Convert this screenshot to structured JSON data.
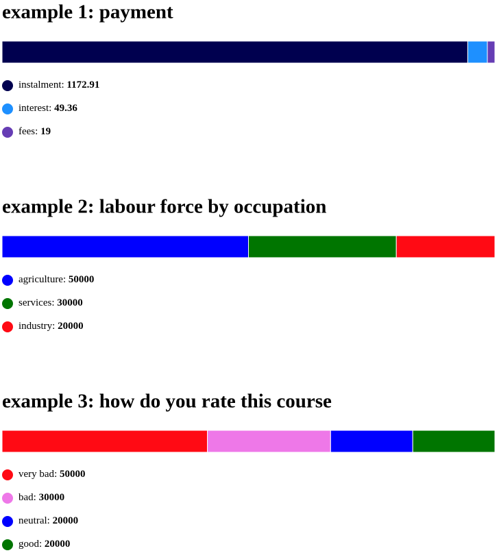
{
  "chart_data": [
    {
      "type": "stacked-bar",
      "title": "example 1: payment",
      "series": [
        {
          "name": "instalment",
          "color": "#00004f",
          "values": [
            1172.91
          ]
        },
        {
          "name": "interest",
          "color": "#1e90ff",
          "values": [
            49.36
          ]
        },
        {
          "name": "fees",
          "color": "#663db4",
          "values": [
            19
          ]
        }
      ]
    },
    {
      "type": "stacked-bar",
      "title": "example 2: labour force by occupation",
      "series": [
        {
          "name": "agriculture",
          "color": "#0000ff",
          "values": [
            50000
          ]
        },
        {
          "name": "services",
          "color": "#007500",
          "values": [
            30000
          ]
        },
        {
          "name": "industry",
          "color": "#ff0a14",
          "values": [
            20000
          ]
        }
      ]
    },
    {
      "type": "stacked-bar",
      "title": "example 3: how do you rate this course",
      "series": [
        {
          "name": "very bad",
          "color": "#ff0a14",
          "values": [
            50000
          ]
        },
        {
          "name": "bad",
          "color": "#ee78e8",
          "values": [
            30000
          ]
        },
        {
          "name": "neutral",
          "color": "#0000ff",
          "values": [
            20000
          ]
        },
        {
          "name": "good",
          "color": "#007500",
          "values": [
            20000
          ]
        }
      ]
    }
  ]
}
